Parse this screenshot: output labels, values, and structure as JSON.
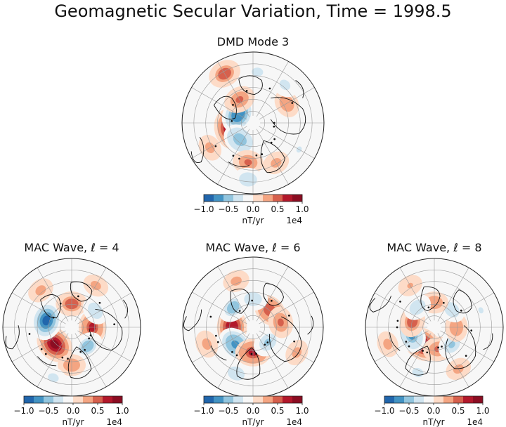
{
  "figure": {
    "title": "Geomagnetic Secular Variation, Time = 1998.5"
  },
  "colorbar": {
    "ticks": [
      "−1.0",
      "−0.5",
      "0.0",
      "0.5",
      "1.0"
    ],
    "label": "nT/yr",
    "multiplier": "1e4",
    "range": [
      -1.0,
      1.0
    ],
    "colors": [
      "#2166ac",
      "#4393c3",
      "#92c5de",
      "#d1e5f0",
      "#f7f7f7",
      "#fddbc7",
      "#f4a582",
      "#d6604d",
      "#b2182b",
      "#8b0d22"
    ]
  },
  "chart_data": [
    {
      "type": "heatmap",
      "title": "DMD Mode 3",
      "projection": "north polar orthographic",
      "units": "nT/yr × 1e4",
      "vmin": -1.0,
      "vmax": 1.0,
      "blobs": [
        {
          "theta": 195,
          "r": 0.33,
          "value": 1.0
        },
        {
          "theta": 150,
          "r": 0.24,
          "value": -0.9
        },
        {
          "theta": 232,
          "r": 0.3,
          "value": -0.7
        },
        {
          "theta": 120,
          "r": 0.38,
          "value": 0.55
        },
        {
          "theta": 263,
          "r": 0.56,
          "value": 0.5
        },
        {
          "theta": 265,
          "r": 0.8,
          "value": -0.45
        },
        {
          "theta": 120,
          "r": 0.8,
          "value": 0.6
        },
        {
          "theta": 30,
          "r": 0.55,
          "value": 0.4
        },
        {
          "theta": 50,
          "r": 0.7,
          "value": -0.35
        },
        {
          "theta": 210,
          "r": 0.7,
          "value": 0.3
        },
        {
          "theta": 85,
          "r": 0.72,
          "value": -0.3
        },
        {
          "theta": 300,
          "r": 0.65,
          "value": 0.3
        },
        {
          "theta": 330,
          "r": 0.75,
          "value": -0.25
        }
      ]
    },
    {
      "type": "heatmap",
      "title": "MAC Wave, ℓ = 4",
      "projection": "north polar orthographic",
      "units": "nT/yr × 1e4",
      "vmin": -1.0,
      "vmax": 1.0,
      "blobs": [
        {
          "theta": 225,
          "r": 0.35,
          "value": 1.0
        },
        {
          "theta": 165,
          "r": 0.38,
          "value": -1.0
        },
        {
          "theta": 90,
          "r": 0.34,
          "value": 0.6
        },
        {
          "theta": 0,
          "r": 0.3,
          "value": 0.75
        },
        {
          "theta": 310,
          "r": 0.36,
          "value": -0.6
        },
        {
          "theta": 35,
          "r": 0.42,
          "value": -0.45
        },
        {
          "theta": 270,
          "r": 0.55,
          "value": 0.4
        },
        {
          "theta": 130,
          "r": 0.7,
          "value": 0.35
        },
        {
          "theta": 60,
          "r": 0.7,
          "value": 0.3
        },
        {
          "theta": 250,
          "r": 0.78,
          "value": -0.3
        }
      ]
    },
    {
      "type": "heatmap",
      "title": "MAC Wave, ℓ = 6",
      "projection": "north polar orthographic",
      "units": "nT/yr × 1e4",
      "vmin": -1.0,
      "vmax": 1.0,
      "blobs": [
        {
          "theta": 180,
          "r": 0.3,
          "value": 0.9
        },
        {
          "theta": 225,
          "r": 0.35,
          "value": -0.85
        },
        {
          "theta": 135,
          "r": 0.4,
          "value": -0.6
        },
        {
          "theta": 270,
          "r": 0.36,
          "value": 0.75
        },
        {
          "theta": 315,
          "r": 0.3,
          "value": -0.55
        },
        {
          "theta": 45,
          "r": 0.34,
          "value": 0.7
        },
        {
          "theta": 90,
          "r": 0.4,
          "value": -0.45
        },
        {
          "theta": 10,
          "r": 0.4,
          "value": 0.55
        },
        {
          "theta": 250,
          "r": 0.7,
          "value": -0.4
        },
        {
          "theta": 200,
          "r": 0.7,
          "value": 0.35
        },
        {
          "theta": 110,
          "r": 0.7,
          "value": 0.3
        },
        {
          "theta": 330,
          "r": 0.72,
          "value": 0.3
        }
      ]
    },
    {
      "type": "heatmap",
      "title": "MAC Wave, ℓ = 8",
      "projection": "north polar orthographic",
      "units": "nT/yr × 1e4",
      "vmin": -1.0,
      "vmax": 1.0,
      "blobs": [
        {
          "theta": 235,
          "r": 0.3,
          "value": 1.0
        },
        {
          "theta": 200,
          "r": 0.35,
          "value": -0.75
        },
        {
          "theta": 165,
          "r": 0.33,
          "value": 0.6
        },
        {
          "theta": 280,
          "r": 0.32,
          "value": 0.55
        },
        {
          "theta": 315,
          "r": 0.36,
          "value": -0.5
        },
        {
          "theta": 0,
          "r": 0.32,
          "value": 0.45
        },
        {
          "theta": 45,
          "r": 0.36,
          "value": -0.4
        },
        {
          "theta": 90,
          "r": 0.36,
          "value": 0.4
        },
        {
          "theta": 130,
          "r": 0.38,
          "value": -0.45
        },
        {
          "theta": 250,
          "r": 0.7,
          "value": -0.35
        },
        {
          "theta": 300,
          "r": 0.7,
          "value": 0.3
        },
        {
          "theta": 120,
          "r": 0.7,
          "value": 0.25
        },
        {
          "theta": 200,
          "r": 0.72,
          "value": 0.3
        },
        {
          "theta": 20,
          "r": 0.72,
          "value": -0.25
        }
      ]
    }
  ]
}
